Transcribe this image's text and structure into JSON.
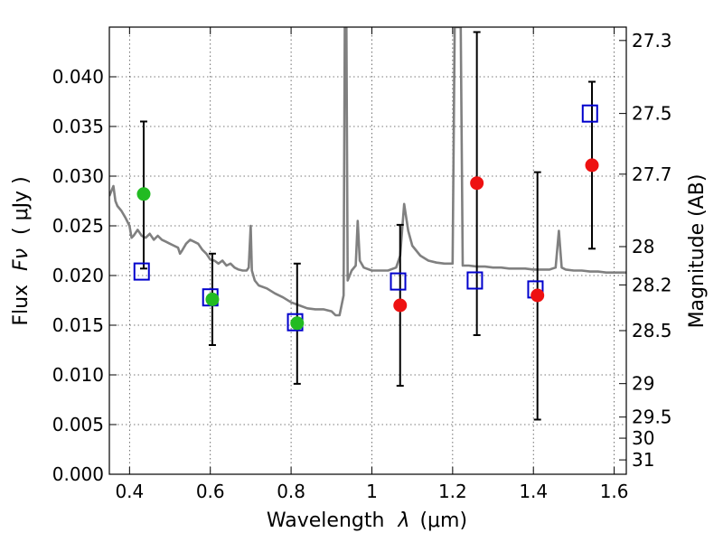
{
  "chart_data": {
    "type": "scatter",
    "title": "",
    "xlabel": "Wavelength",
    "xlabel_symbol": "λ",
    "xlabel_unit": "(μm)",
    "ylabel": "Flux",
    "ylabel_symbol": "Fν",
    "ylabel_unit": "( μJy )",
    "ylabel_right": "Magnitude (AB)",
    "xlim": [
      0.35,
      1.63
    ],
    "ylim": [
      0.0,
      0.045
    ],
    "grid": true,
    "x_ticks": [
      {
        "value": 0.4,
        "label": "0.4"
      },
      {
        "value": 0.6,
        "label": "0.6"
      },
      {
        "value": 0.8,
        "label": "0.8"
      },
      {
        "value": 1.0,
        "label": "1"
      },
      {
        "value": 1.2,
        "label": "1.2"
      },
      {
        "value": 1.4,
        "label": "1.4"
      },
      {
        "value": 1.6,
        "label": "1.6"
      }
    ],
    "y_ticks": [
      {
        "value": 0.0,
        "label": "0.000"
      },
      {
        "value": 0.005,
        "label": "0.005"
      },
      {
        "value": 0.01,
        "label": "0.010"
      },
      {
        "value": 0.015,
        "label": "0.015"
      },
      {
        "value": 0.02,
        "label": "0.020"
      },
      {
        "value": 0.025,
        "label": "0.025"
      },
      {
        "value": 0.03,
        "label": "0.030"
      },
      {
        "value": 0.035,
        "label": "0.035"
      },
      {
        "value": 0.04,
        "label": "0.040"
      }
    ],
    "right_ticks": [
      {
        "value": 27.3,
        "label": "27.3"
      },
      {
        "value": 27.5,
        "label": "27.5"
      },
      {
        "value": 27.7,
        "label": "27.7"
      },
      {
        "value": 28,
        "label": "28"
      },
      {
        "value": 28.2,
        "label": "28.2"
      },
      {
        "value": 28.5,
        "label": "28.5"
      },
      {
        "value": 29,
        "label": "29"
      },
      {
        "value": 29.5,
        "label": "29.5"
      },
      {
        "value": 30,
        "label": "30"
      },
      {
        "value": 31,
        "label": "31"
      }
    ],
    "model_spectrum": {
      "color": "#808080",
      "points": [
        [
          0.35,
          0.028
        ],
        [
          0.355,
          0.0285
        ],
        [
          0.36,
          0.029
        ],
        [
          0.365,
          0.0275
        ],
        [
          0.37,
          0.027
        ],
        [
          0.38,
          0.0265
        ],
        [
          0.39,
          0.0258
        ],
        [
          0.4,
          0.025
        ],
        [
          0.405,
          0.0238
        ],
        [
          0.41,
          0.024
        ],
        [
          0.42,
          0.0246
        ],
        [
          0.43,
          0.024
        ],
        [
          0.44,
          0.0238
        ],
        [
          0.45,
          0.0242
        ],
        [
          0.46,
          0.0236
        ],
        [
          0.47,
          0.024
        ],
        [
          0.48,
          0.0236
        ],
        [
          0.49,
          0.0234
        ],
        [
          0.5,
          0.0232
        ],
        [
          0.51,
          0.023
        ],
        [
          0.52,
          0.0228
        ],
        [
          0.525,
          0.0222
        ],
        [
          0.53,
          0.0225
        ],
        [
          0.54,
          0.0232
        ],
        [
          0.55,
          0.0236
        ],
        [
          0.56,
          0.0234
        ],
        [
          0.57,
          0.0232
        ],
        [
          0.58,
          0.0226
        ],
        [
          0.59,
          0.0222
        ],
        [
          0.6,
          0.0216
        ],
        [
          0.61,
          0.0215
        ],
        [
          0.62,
          0.0212
        ],
        [
          0.63,
          0.0215
        ],
        [
          0.64,
          0.021
        ],
        [
          0.65,
          0.0212
        ],
        [
          0.66,
          0.0208
        ],
        [
          0.67,
          0.0206
        ],
        [
          0.68,
          0.0205
        ],
        [
          0.69,
          0.0205
        ],
        [
          0.695,
          0.0208
        ],
        [
          0.7,
          0.025
        ],
        [
          0.703,
          0.0205
        ],
        [
          0.71,
          0.0195
        ],
        [
          0.72,
          0.019
        ],
        [
          0.74,
          0.0187
        ],
        [
          0.76,
          0.0182
        ],
        [
          0.78,
          0.0178
        ],
        [
          0.8,
          0.0173
        ],
        [
          0.82,
          0.017
        ],
        [
          0.84,
          0.0167
        ],
        [
          0.86,
          0.0166
        ],
        [
          0.88,
          0.0166
        ],
        [
          0.9,
          0.0164
        ],
        [
          0.91,
          0.016
        ],
        [
          0.92,
          0.016
        ],
        [
          0.93,
          0.018
        ],
        [
          0.933,
          0.045
        ],
        [
          0.937,
          0.045
        ],
        [
          0.94,
          0.0195
        ],
        [
          0.95,
          0.0205
        ],
        [
          0.96,
          0.021
        ],
        [
          0.965,
          0.0255
        ],
        [
          0.97,
          0.0215
        ],
        [
          0.98,
          0.0208
        ],
        [
          1.0,
          0.0205
        ],
        [
          1.02,
          0.0205
        ],
        [
          1.04,
          0.0205
        ],
        [
          1.06,
          0.0208
        ],
        [
          1.07,
          0.022
        ],
        [
          1.08,
          0.0272
        ],
        [
          1.09,
          0.0245
        ],
        [
          1.1,
          0.023
        ],
        [
          1.12,
          0.022
        ],
        [
          1.14,
          0.0215
        ],
        [
          1.16,
          0.0213
        ],
        [
          1.18,
          0.0212
        ],
        [
          1.2,
          0.0212
        ],
        [
          1.205,
          0.045
        ],
        [
          1.22,
          0.045
        ],
        [
          1.225,
          0.021
        ],
        [
          1.24,
          0.021
        ],
        [
          1.26,
          0.0209
        ],
        [
          1.28,
          0.0209
        ],
        [
          1.3,
          0.0208
        ],
        [
          1.32,
          0.0208
        ],
        [
          1.34,
          0.0207
        ],
        [
          1.36,
          0.0207
        ],
        [
          1.38,
          0.0207
        ],
        [
          1.4,
          0.0206
        ],
        [
          1.42,
          0.0206
        ],
        [
          1.44,
          0.0206
        ],
        [
          1.455,
          0.0208
        ],
        [
          1.463,
          0.0245
        ],
        [
          1.47,
          0.0208
        ],
        [
          1.48,
          0.0206
        ],
        [
          1.5,
          0.0205
        ],
        [
          1.52,
          0.0205
        ],
        [
          1.54,
          0.0204
        ],
        [
          1.56,
          0.0204
        ],
        [
          1.58,
          0.0203
        ],
        [
          1.6,
          0.0203
        ],
        [
          1.63,
          0.0203
        ]
      ]
    },
    "errorbars": [
      {
        "x": 0.435,
        "lower": 0.0207,
        "upper": 0.0355
      },
      {
        "x": 0.605,
        "lower": 0.013,
        "upper": 0.0222
      },
      {
        "x": 0.815,
        "lower": 0.0091,
        "upper": 0.0212
      },
      {
        "x": 1.07,
        "lower": 0.0089,
        "upper": 0.0251
      },
      {
        "x": 1.26,
        "lower": 0.014,
        "upper": 0.0445
      },
      {
        "x": 1.41,
        "lower": 0.0055,
        "upper": 0.0304
      },
      {
        "x": 1.545,
        "lower": 0.0227,
        "upper": 0.0395
      }
    ],
    "series": [
      {
        "marker": "square-open",
        "color": "#0000cc",
        "points": [
          {
            "x": 0.43,
            "y": 0.0204
          },
          {
            "x": 0.6,
            "y": 0.0178
          },
          {
            "x": 0.81,
            "y": 0.0153
          },
          {
            "x": 1.065,
            "y": 0.0194
          },
          {
            "x": 1.255,
            "y": 0.0195
          },
          {
            "x": 1.405,
            "y": 0.0186
          },
          {
            "x": 1.54,
            "y": 0.0363
          }
        ]
      },
      {
        "marker": "circle",
        "color": "#22bb22",
        "points": [
          {
            "x": 0.435,
            "y": 0.0282
          },
          {
            "x": 0.605,
            "y": 0.0176
          },
          {
            "x": 0.815,
            "y": 0.0152
          }
        ]
      },
      {
        "marker": "circle",
        "color": "#ee1111",
        "points": [
          {
            "x": 1.07,
            "y": 0.017
          },
          {
            "x": 1.26,
            "y": 0.0293
          },
          {
            "x": 1.41,
            "y": 0.018
          },
          {
            "x": 1.545,
            "y": 0.0311
          }
        ]
      }
    ]
  }
}
